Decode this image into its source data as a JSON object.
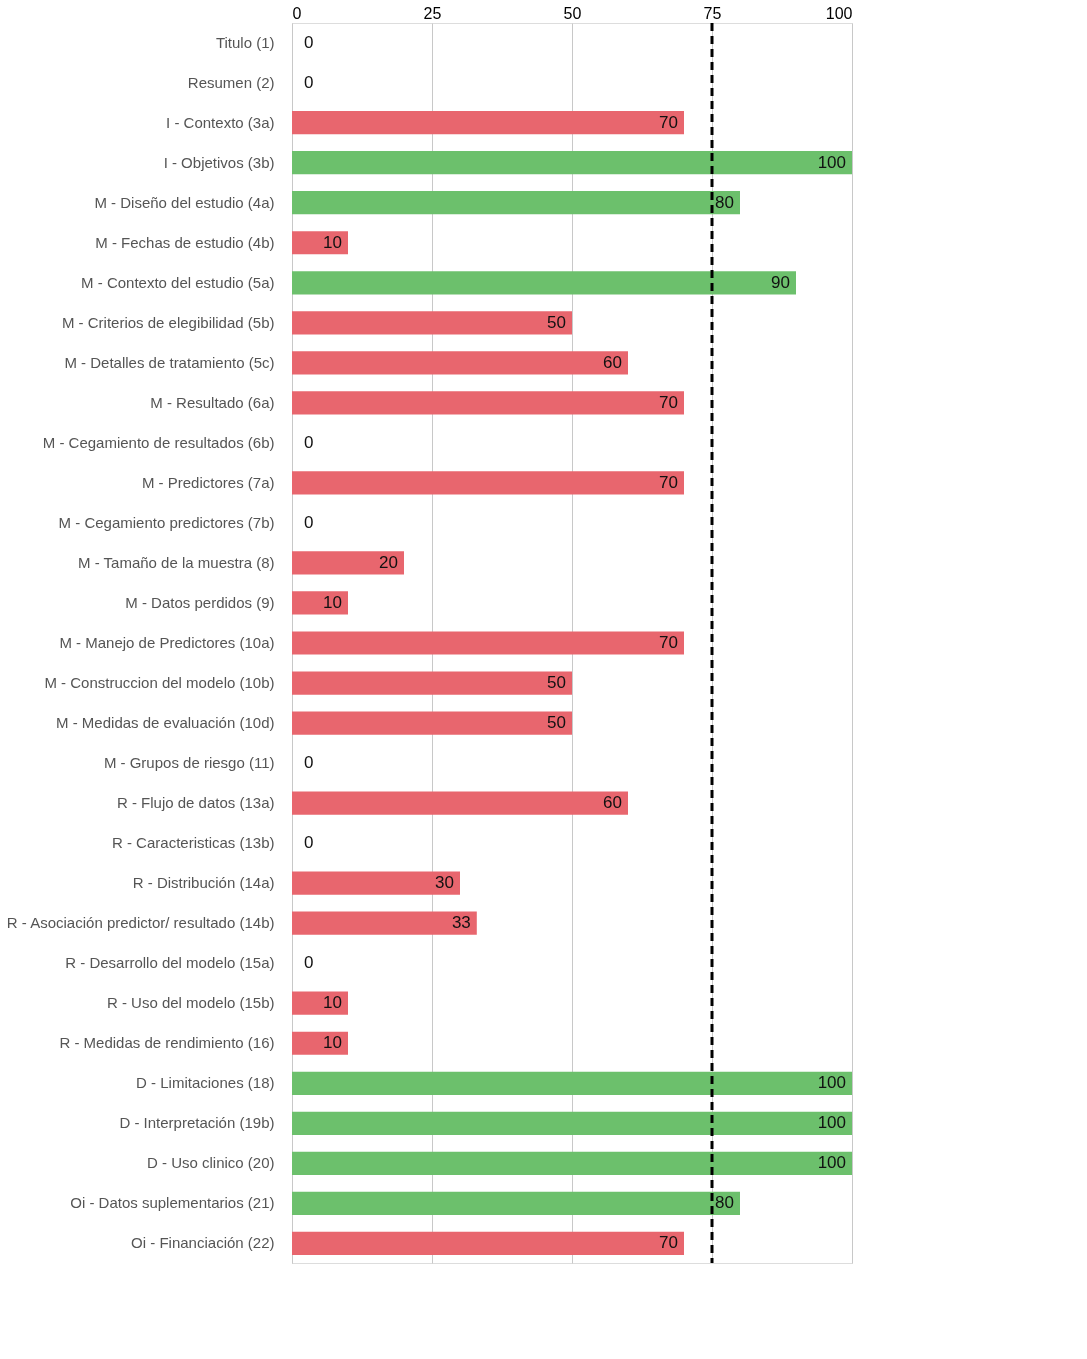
{
  "chart_data": {
    "type": "bar",
    "orientation": "horizontal",
    "categories": [
      "Titulo (1)",
      "Resumen (2)",
      "I - Contexto (3a)",
      "I - Objetivos (3b)",
      "M - Diseño del estudio (4a)",
      "M - Fechas de estudio (4b)",
      "M - Contexto del estudio (5a)",
      "M - Criterios de elegibilidad (5b)",
      "M - Detalles de tratamiento (5c)",
      "M - Resultado (6a)",
      "M - Cegamiento de resultados (6b)",
      "M - Predictores (7a)",
      "M - Cegamiento predictores (7b)",
      "M - Tamaño de la muestra (8)",
      "M - Datos perdidos (9)",
      "M - Manejo de Predictores (10a)",
      "M - Construccion del modelo (10b)",
      "M - Medidas de evaluación (10d)",
      "M - Grupos de riesgo (11)",
      "R - Flujo de datos (13a)",
      "R - Caracteristicas (13b)",
      "R - Distribución (14a)",
      "R - Asociación predictor/ resultado (14b)",
      "R - Desarrollo del modelo (15a)",
      "R - Uso del modelo (15b)",
      "R - Medidas de rendimiento (16)",
      "D - Limitaciones (18)",
      "D - Interpretación (19b)",
      "D - Uso clinico (20)",
      "Oi - Datos suplementarios (21)",
      "Oi - Financiación (22)"
    ],
    "values": [
      0,
      0,
      70,
      100,
      80,
      10,
      90,
      50,
      60,
      70,
      0,
      70,
      0,
      20,
      10,
      70,
      50,
      50,
      0,
      60,
      0,
      30,
      33,
      0,
      10,
      10,
      100,
      100,
      100,
      80,
      70
    ],
    "colors": [
      "#e8666e",
      "#e8666e",
      "#e8666e",
      "#6cc06c",
      "#6cc06c",
      "#e8666e",
      "#6cc06c",
      "#e8666e",
      "#e8666e",
      "#e8666e",
      "#e8666e",
      "#e8666e",
      "#e8666e",
      "#e8666e",
      "#e8666e",
      "#e8666e",
      "#e8666e",
      "#e8666e",
      "#e8666e",
      "#e8666e",
      "#e8666e",
      "#e8666e",
      "#e8666e",
      "#e8666e",
      "#e8666e",
      "#e8666e",
      "#6cc06c",
      "#6cc06c",
      "#6cc06c",
      "#6cc06c",
      "#e8666e"
    ],
    "xlim": [
      0,
      100
    ],
    "xticks": [
      0,
      25,
      50,
      75,
      100
    ],
    "grid": "x",
    "data_labels": true,
    "ref_lines": [
      {
        "axis": "x",
        "value": 75,
        "color": "#000000",
        "line_style": "dashed"
      }
    ]
  }
}
